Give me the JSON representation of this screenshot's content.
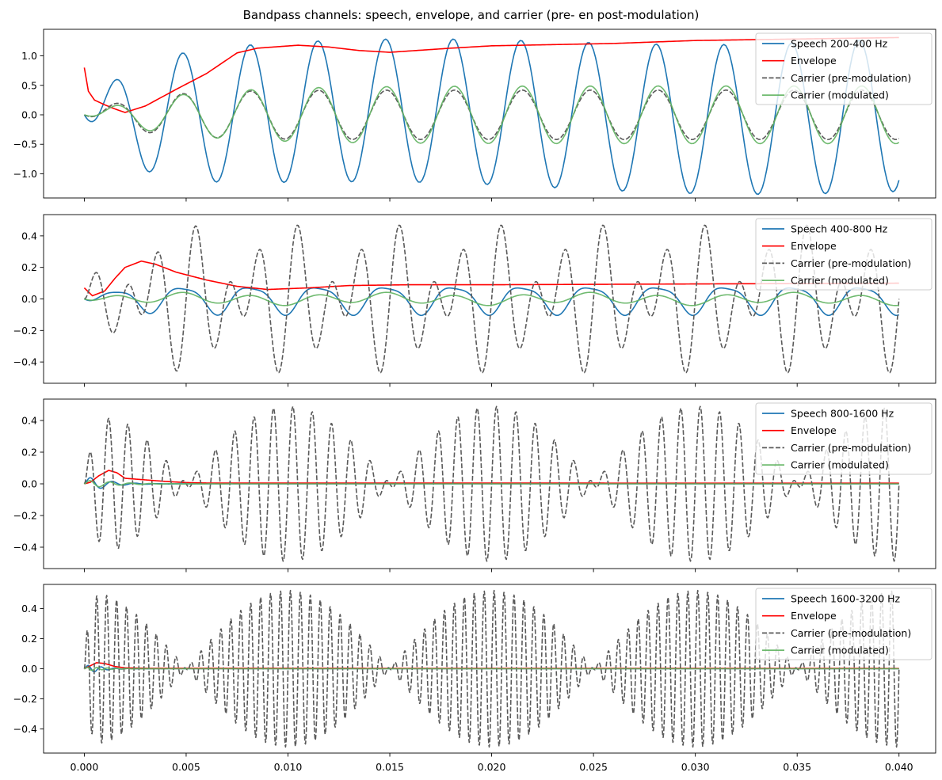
{
  "figure": {
    "title": "Bandpass channels: speech, envelope, and carrier (pre- en post-modulation)"
  },
  "colors": {
    "speech": "#1f77b4",
    "envelope": "#ff0000",
    "carrier_pre": "#5a5a5a",
    "carrier_mod": "#5fb35f",
    "axes": "#000000"
  },
  "chart_data": [
    {
      "type": "line",
      "title": "",
      "xlabel": "",
      "ylabel": "",
      "xlim": [
        -0.002,
        0.0418
      ],
      "ylim": [
        -1.41,
        1.45
      ],
      "xticks": [
        0.0,
        0.005,
        0.01,
        0.015,
        0.02,
        0.025,
        0.03,
        0.035,
        0.04
      ],
      "xtick_labels": [],
      "yticks": [
        -1.0,
        -0.5,
        0.0,
        0.5,
        1.0
      ],
      "ytick_labels": [
        "−1.0",
        "−0.5",
        "0.0",
        "0.5",
        "1.0"
      ],
      "legend_position": "upper right",
      "x": {
        "start": 0.0,
        "end": 0.04,
        "step": 0.0001
      },
      "series": [
        {
          "name": "Speech 200-400 Hz",
          "role": "speech",
          "style": "solid",
          "model": {
            "kind": "tone_mix",
            "onset_tau": 0.002,
            "components": [
              {
                "freq": 301,
                "amp": 1.16
              },
              {
                "freq": 30,
                "amp": 0.07
              }
            ],
            "drift": 3.0
          }
        },
        {
          "name": "Envelope",
          "role": "envelope",
          "style": "solid",
          "points": [
            [
              0,
              0.8
            ],
            [
              0.0002,
              0.4
            ],
            [
              0.0005,
              0.25
            ],
            [
              0.001,
              0.17
            ],
            [
              0.0015,
              0.1
            ],
            [
              0.002,
              0.04
            ],
            [
              0.003,
              0.15
            ],
            [
              0.0045,
              0.43
            ],
            [
              0.006,
              0.7
            ],
            [
              0.0075,
              1.05
            ],
            [
              0.0085,
              1.13
            ],
            [
              0.0105,
              1.18
            ],
            [
              0.012,
              1.15
            ],
            [
              0.0135,
              1.09
            ],
            [
              0.015,
              1.06
            ],
            [
              0.018,
              1.13
            ],
            [
              0.02,
              1.17
            ],
            [
              0.023,
              1.19
            ],
            [
              0.026,
              1.21
            ],
            [
              0.03,
              1.26
            ],
            [
              0.034,
              1.28
            ],
            [
              0.04,
              1.31
            ]
          ]
        },
        {
          "name": "Carrier (pre-modulation)",
          "role": "carrier_pre",
          "style": "dashed",
          "model": {
            "kind": "tone_mix",
            "onset_tau": 0.0025,
            "components": [
              {
                "freq": 300,
                "amp": 0.42
              }
            ],
            "drift": 0
          }
        },
        {
          "name": "Carrier (modulated)",
          "role": "carrier_mod",
          "style": "solid",
          "model": {
            "kind": "tone_mix",
            "onset_tau": 0.004,
            "components": [
              {
                "freq": 300,
                "amp": 0.49
              }
            ],
            "drift": 0
          }
        }
      ]
    },
    {
      "type": "line",
      "title": "",
      "xlabel": "",
      "ylabel": "",
      "xlim": [
        -0.002,
        0.0418
      ],
      "ylim": [
        -0.535,
        0.535
      ],
      "xticks": [
        0.0,
        0.005,
        0.01,
        0.015,
        0.02,
        0.025,
        0.03,
        0.035,
        0.04
      ],
      "xtick_labels": [],
      "yticks": [
        -0.4,
        -0.2,
        0.0,
        0.2,
        0.4
      ],
      "ytick_labels": [
        "−0.4",
        "−0.2",
        "0.0",
        "0.2",
        "0.4"
      ],
      "legend_position": "upper right",
      "x": {
        "start": 0.0,
        "end": 0.04,
        "step": 5e-05
      },
      "series": [
        {
          "name": "Speech 400-800 Hz",
          "role": "speech",
          "style": "solid",
          "model": {
            "kind": "tone_mix",
            "onset_tau": 0.0015,
            "components": [
              {
                "freq": 300,
                "amp": 0.085
              },
              {
                "freq": 600,
                "amp": 0.02
              }
            ],
            "drift": 0
          }
        },
        {
          "name": "Envelope",
          "role": "envelope",
          "style": "solid",
          "points": [
            [
              0,
              0.07
            ],
            [
              0.0004,
              0.02
            ],
            [
              0.001,
              0.05
            ],
            [
              0.0015,
              0.13
            ],
            [
              0.002,
              0.2
            ],
            [
              0.0028,
              0.24
            ],
            [
              0.0035,
              0.22
            ],
            [
              0.0045,
              0.17
            ],
            [
              0.006,
              0.12
            ],
            [
              0.0075,
              0.08
            ],
            [
              0.009,
              0.06
            ],
            [
              0.011,
              0.07
            ],
            [
              0.013,
              0.085
            ],
            [
              0.016,
              0.09
            ],
            [
              0.02,
              0.09
            ],
            [
              0.03,
              0.095
            ],
            [
              0.04,
              0.1
            ]
          ]
        },
        {
          "name": "Carrier (pre-modulation)",
          "role": "carrier_pre",
          "style": "dashed",
          "model": {
            "kind": "beat",
            "onset_tau": 0.0012,
            "components": [
              {
                "freq": 600,
                "amp": 0.28
              },
              {
                "freq": 400,
                "amp": 0.21
              }
            ],
            "drift": 0
          }
        },
        {
          "name": "Carrier (modulated)",
          "role": "carrier_mod",
          "style": "solid",
          "model": {
            "kind": "tone_mix",
            "onset_tau": 0.001,
            "components": [
              {
                "freq": 300,
                "amp": 0.03
              },
              {
                "freq": 100,
                "amp": 0.012
              }
            ],
            "drift": 0
          }
        }
      ]
    },
    {
      "type": "line",
      "title": "",
      "xlabel": "",
      "ylabel": "",
      "xlim": [
        -0.002,
        0.0418
      ],
      "ylim": [
        -0.535,
        0.535
      ],
      "xticks": [
        0.0,
        0.005,
        0.01,
        0.015,
        0.02,
        0.025,
        0.03,
        0.035,
        0.04
      ],
      "xtick_labels": [],
      "yticks": [
        -0.4,
        -0.2,
        0.0,
        0.2,
        0.4
      ],
      "ytick_labels": [
        "−0.4",
        "−0.2",
        "0.0",
        "0.2",
        "0.4"
      ],
      "legend_position": "upper right",
      "x": {
        "start": 0.0,
        "end": 0.04,
        "step": 4e-05
      },
      "series": [
        {
          "name": "Speech 800-1600 Hz",
          "role": "speech",
          "style": "solid",
          "model": {
            "kind": "decay",
            "decay_tau": 0.0009,
            "components": [
              {
                "freq": 900,
                "amp": 0.07
              }
            ],
            "drift": 0
          }
        },
        {
          "name": "Envelope",
          "role": "envelope",
          "style": "solid",
          "points": [
            [
              0,
              0.0
            ],
            [
              0.0003,
              0.01
            ],
            [
              0.0007,
              0.05
            ],
            [
              0.0012,
              0.085
            ],
            [
              0.0016,
              0.07
            ],
            [
              0.002,
              0.035
            ],
            [
              0.003,
              0.025
            ],
            [
              0.004,
              0.015
            ],
            [
              0.005,
              0.008
            ],
            [
              0.006,
              0.005
            ],
            [
              0.04,
              0.004
            ]
          ]
        },
        {
          "name": "Carrier (pre-modulation)",
          "role": "carrier_pre",
          "style": "dashed",
          "model": {
            "kind": "beat",
            "onset_tau": 0.0005,
            "components": [
              {
                "freq": 1100,
                "amp": 0.25
              },
              {
                "freq": 1000,
                "amp": 0.24
              }
            ],
            "drift": 0
          }
        },
        {
          "name": "Carrier (modulated)",
          "role": "carrier_mod",
          "style": "solid",
          "model": {
            "kind": "decay",
            "decay_tau": 0.0012,
            "components": [
              {
                "freq": 1000,
                "amp": 0.035
              }
            ],
            "drift": 0
          }
        }
      ]
    },
    {
      "type": "line",
      "title": "",
      "xlabel": "",
      "ylabel": "",
      "xlim": [
        -0.002,
        0.0418
      ],
      "ylim": [
        -0.56,
        0.56
      ],
      "xticks": [
        0.0,
        0.005,
        0.01,
        0.015,
        0.02,
        0.025,
        0.03,
        0.035,
        0.04
      ],
      "xtick_labels": [
        "0.000",
        "0.005",
        "0.010",
        "0.015",
        "0.020",
        "0.025",
        "0.030",
        "0.035",
        "0.040"
      ],
      "yticks": [
        -0.4,
        -0.2,
        0.0,
        0.2,
        0.4
      ],
      "ytick_labels": [
        "−0.4",
        "−0.2",
        "0.0",
        "0.2",
        "0.4"
      ],
      "legend_position": "upper right",
      "x": {
        "start": 0.0,
        "end": 0.04,
        "step": 2e-05
      },
      "series": [
        {
          "name": "Speech 1600-3200 Hz",
          "role": "speech",
          "style": "solid",
          "model": {
            "kind": "decay",
            "decay_tau": 0.0006,
            "components": [
              {
                "freq": 1500,
                "amp": 0.05
              }
            ],
            "drift": 0
          }
        },
        {
          "name": "Envelope",
          "role": "envelope",
          "style": "solid",
          "points": [
            [
              0,
              0.0
            ],
            [
              0.0003,
              0.02
            ],
            [
              0.0006,
              0.04
            ],
            [
              0.001,
              0.035
            ],
            [
              0.0015,
              0.015
            ],
            [
              0.002,
              0.006
            ],
            [
              0.003,
              0.003
            ],
            [
              0.04,
              0.002
            ]
          ]
        },
        {
          "name": "Carrier (pre-modulation)",
          "role": "carrier_pre",
          "style": "dashed",
          "model": {
            "kind": "beat",
            "onset_tau": 0.0002,
            "components": [
              {
                "freq": 2100,
                "amp": 0.26
              },
              {
                "freq": 2000,
                "amp": 0.26
              }
            ],
            "drift": 0
          }
        },
        {
          "name": "Carrier (modulated)",
          "role": "carrier_mod",
          "style": "solid",
          "model": {
            "kind": "decay",
            "decay_tau": 0.0008,
            "components": [
              {
                "freq": 2000,
                "amp": 0.02
              }
            ],
            "drift": 0
          }
        }
      ]
    }
  ]
}
